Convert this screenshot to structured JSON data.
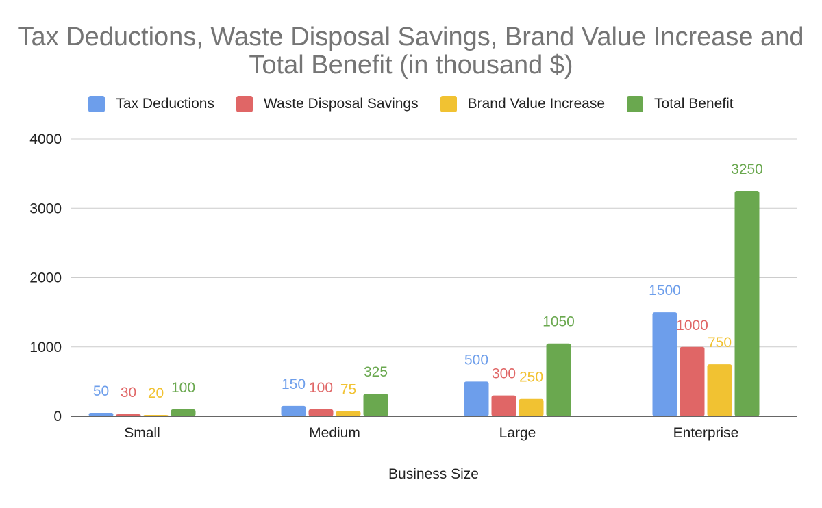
{
  "chart_data": {
    "type": "bar",
    "title": "Tax Deductions, Waste Disposal Savings, Brand Value Increase and Total Benefit  (in thousand $)",
    "xlabel": "Business Size",
    "ylabel": "",
    "categories": [
      "Small",
      "Medium",
      "Large",
      "Enterprise"
    ],
    "ylim": [
      0,
      4000
    ],
    "yticks": [
      0,
      1000,
      2000,
      3000,
      4000
    ],
    "grid": true,
    "legend_position": "top",
    "series": [
      {
        "name": "Tax Deductions",
        "color": "#6d9eeb",
        "values": [
          50,
          150,
          500,
          1500
        ]
      },
      {
        "name": "Waste Disposal Savings",
        "color": "#e06666",
        "values": [
          30,
          100,
          300,
          1000
        ]
      },
      {
        "name": "Brand Value Increase",
        "color": "#f1c232",
        "values": [
          20,
          75,
          250,
          750
        ]
      },
      {
        "name": "Total Benefit",
        "color": "#6aa84f",
        "values": [
          100,
          325,
          1050,
          3250
        ]
      }
    ]
  }
}
